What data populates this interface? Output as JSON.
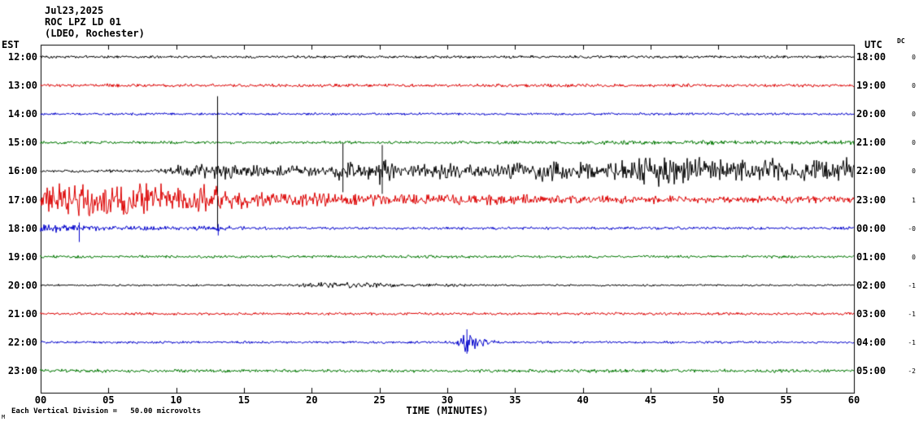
{
  "header": {
    "date": "Jul23,2025",
    "station": "ROC LPZ LD 01",
    "location": "(LDEO, Rochester)"
  },
  "axes": {
    "left_title": "EST",
    "right_title": "UTC",
    "dc_title": "DC",
    "x_title": "TIME (MINUTES)",
    "x_ticks": [
      "00",
      "05",
      "10",
      "15",
      "20",
      "25",
      "30",
      "35",
      "40",
      "45",
      "50",
      "55",
      "60"
    ]
  },
  "footer": {
    "scale_note": "Each Vertical Division =   50.00 microvolts",
    "corner_mark": "M"
  },
  "colors": {
    "black": "#000000",
    "red": "#dd0000",
    "blue": "#0000cc",
    "green": "#007700",
    "background": "#ffffff"
  },
  "chart_data": {
    "type": "line",
    "kind": "seismogram-helicorder",
    "title": "ROC LPZ LD 01 (LDEO, Rochester) Jul23,2025",
    "x_unit": "minutes",
    "x_range": [
      0,
      60
    ],
    "scale": "Each Vertical Division = 50.00 microvolts",
    "rows": [
      {
        "est": "12:00",
        "utc": "18:00",
        "dc": "0",
        "color": "black",
        "env": [
          [
            0,
            2
          ],
          [
            60,
            2
          ]
        ],
        "events": [],
        "spikes": []
      },
      {
        "est": "13:00",
        "utc": "19:00",
        "dc": "0",
        "color": "red",
        "env": [
          [
            0,
            2.4
          ],
          [
            60,
            2.4
          ]
        ],
        "events": [],
        "spikes": []
      },
      {
        "est": "14:00",
        "utc": "20:00",
        "dc": "0",
        "color": "blue",
        "env": [
          [
            0,
            1.8
          ],
          [
            60,
            1.8
          ]
        ],
        "events": [],
        "spikes": []
      },
      {
        "est": "15:00",
        "utc": "21:00",
        "dc": "0",
        "color": "green",
        "env": [
          [
            0,
            2.2
          ],
          [
            38,
            2.2
          ],
          [
            42,
            3.2
          ],
          [
            46,
            2.6
          ],
          [
            50,
            3.4
          ],
          [
            54,
            2.8
          ],
          [
            60,
            3.0
          ]
        ],
        "events": [],
        "spikes": []
      },
      {
        "est": "16:00",
        "utc": "22:00",
        "dc": "0",
        "color": "black",
        "env": [
          [
            0,
            2
          ],
          [
            8,
            2
          ],
          [
            9,
            4
          ],
          [
            10,
            9
          ],
          [
            11,
            12
          ],
          [
            12,
            10
          ],
          [
            13,
            12
          ],
          [
            14,
            10
          ],
          [
            16,
            8
          ],
          [
            18,
            7
          ],
          [
            20,
            7
          ],
          [
            21,
            8
          ],
          [
            22,
            16
          ],
          [
            23,
            11
          ],
          [
            24,
            10
          ],
          [
            25,
            18
          ],
          [
            26,
            12
          ],
          [
            27,
            10
          ],
          [
            28,
            13
          ],
          [
            29,
            10
          ],
          [
            30,
            13
          ],
          [
            31,
            10
          ],
          [
            32,
            9
          ],
          [
            33,
            8
          ],
          [
            34,
            11
          ],
          [
            35,
            13
          ],
          [
            36,
            11
          ],
          [
            37,
            14
          ],
          [
            38,
            15
          ],
          [
            39,
            12
          ],
          [
            40,
            13
          ],
          [
            41,
            11
          ],
          [
            42,
            15
          ],
          [
            43,
            17
          ],
          [
            44,
            19
          ],
          [
            45,
            22
          ],
          [
            46,
            24
          ],
          [
            47,
            20
          ],
          [
            48,
            23
          ],
          [
            49,
            18
          ],
          [
            50,
            19
          ],
          [
            51,
            15
          ],
          [
            52,
            17
          ],
          [
            53,
            14
          ],
          [
            54,
            19
          ],
          [
            55,
            17
          ],
          [
            56,
            16
          ],
          [
            57,
            18
          ],
          [
            58,
            15
          ],
          [
            59,
            17
          ],
          [
            60,
            19
          ]
        ],
        "events": [],
        "spikes": [
          {
            "m": 13.05,
            "up": 92,
            "down": 70
          },
          {
            "m": 22.3,
            "up": 34,
            "down": 26
          },
          {
            "m": 25.2,
            "up": 32,
            "down": 28
          }
        ]
      },
      {
        "est": "17:00",
        "utc": "23:00",
        "dc": "1",
        "color": "red",
        "env": [
          [
            0,
            20
          ],
          [
            1,
            25
          ],
          [
            2,
            22
          ],
          [
            3,
            26
          ],
          [
            4,
            23
          ],
          [
            5,
            25
          ],
          [
            6,
            22
          ],
          [
            7,
            26
          ],
          [
            8,
            23
          ],
          [
            9,
            24
          ],
          [
            10,
            22
          ],
          [
            11,
            23
          ],
          [
            12,
            21
          ],
          [
            13,
            23
          ],
          [
            14,
            16
          ],
          [
            15,
            13
          ],
          [
            16,
            12
          ],
          [
            17,
            11
          ],
          [
            18,
            10
          ],
          [
            20,
            10
          ],
          [
            22,
            9
          ],
          [
            24,
            9
          ],
          [
            26,
            8
          ],
          [
            28,
            8
          ],
          [
            30,
            8
          ],
          [
            32,
            7
          ],
          [
            34,
            7
          ],
          [
            36,
            7
          ],
          [
            38,
            6
          ],
          [
            40,
            6
          ],
          [
            44,
            6
          ],
          [
            48,
            5
          ],
          [
            52,
            5
          ],
          [
            56,
            5
          ],
          [
            60,
            5
          ]
        ],
        "events": [],
        "spikes": []
      },
      {
        "est": "18:00",
        "utc": "00:00",
        "dc": "-0",
        "color": "blue",
        "env": [
          [
            0,
            5
          ],
          [
            1,
            6
          ],
          [
            2,
            5
          ],
          [
            3,
            5
          ],
          [
            4,
            4
          ],
          [
            6,
            3.5
          ],
          [
            8,
            3
          ],
          [
            10,
            3
          ],
          [
            12,
            3.5
          ],
          [
            13,
            4
          ],
          [
            14,
            3
          ],
          [
            16,
            2.5
          ],
          [
            20,
            2
          ],
          [
            60,
            2
          ]
        ],
        "events": [],
        "spikes": [
          {
            "m": 2.85,
            "up": 7,
            "down": 17
          },
          {
            "m": 13.1,
            "up": 5,
            "down": 9
          }
        ]
      },
      {
        "est": "19:00",
        "utc": "01:00",
        "dc": "0",
        "color": "green",
        "env": [
          [
            0,
            2
          ],
          [
            60,
            2
          ]
        ],
        "events": [],
        "spikes": []
      },
      {
        "est": "20:00",
        "utc": "02:00",
        "dc": "-1",
        "color": "black",
        "env": [
          [
            0,
            1.4
          ],
          [
            18,
            1.4
          ],
          [
            19,
            2.6
          ],
          [
            20,
            3.4
          ],
          [
            21,
            4
          ],
          [
            22,
            3.4
          ],
          [
            23,
            3.8
          ],
          [
            24,
            3.2
          ],
          [
            25,
            3.6
          ],
          [
            26,
            2.8
          ],
          [
            27,
            2.2
          ],
          [
            28,
            2
          ],
          [
            29,
            2.4
          ],
          [
            30,
            2.2
          ],
          [
            31,
            2.6
          ],
          [
            32,
            1.8
          ],
          [
            34,
            1.5
          ],
          [
            60,
            1.4
          ]
        ],
        "events": [],
        "spikes": []
      },
      {
        "est": "21:00",
        "utc": "03:00",
        "dc": "-1",
        "color": "red",
        "env": [
          [
            0,
            2
          ],
          [
            60,
            2
          ]
        ],
        "events": [],
        "spikes": []
      },
      {
        "est": "22:00",
        "utc": "04:00",
        "dc": "-1",
        "color": "blue",
        "env": [
          [
            0,
            1.8
          ],
          [
            60,
            1.8
          ]
        ],
        "events": [
          {
            "m": 31.4,
            "amp": 16,
            "w": 0.35
          },
          {
            "m": 32.2,
            "amp": 4,
            "w": 0.8
          }
        ],
        "spikes": [
          {
            "m": 31.45,
            "up": 16,
            "down": 14
          }
        ]
      },
      {
        "est": "23:00",
        "utc": "05:00",
        "dc": "-2",
        "color": "green",
        "env": [
          [
            0,
            2.4
          ],
          [
            60,
            2.4
          ]
        ],
        "events": [],
        "spikes": []
      }
    ]
  }
}
